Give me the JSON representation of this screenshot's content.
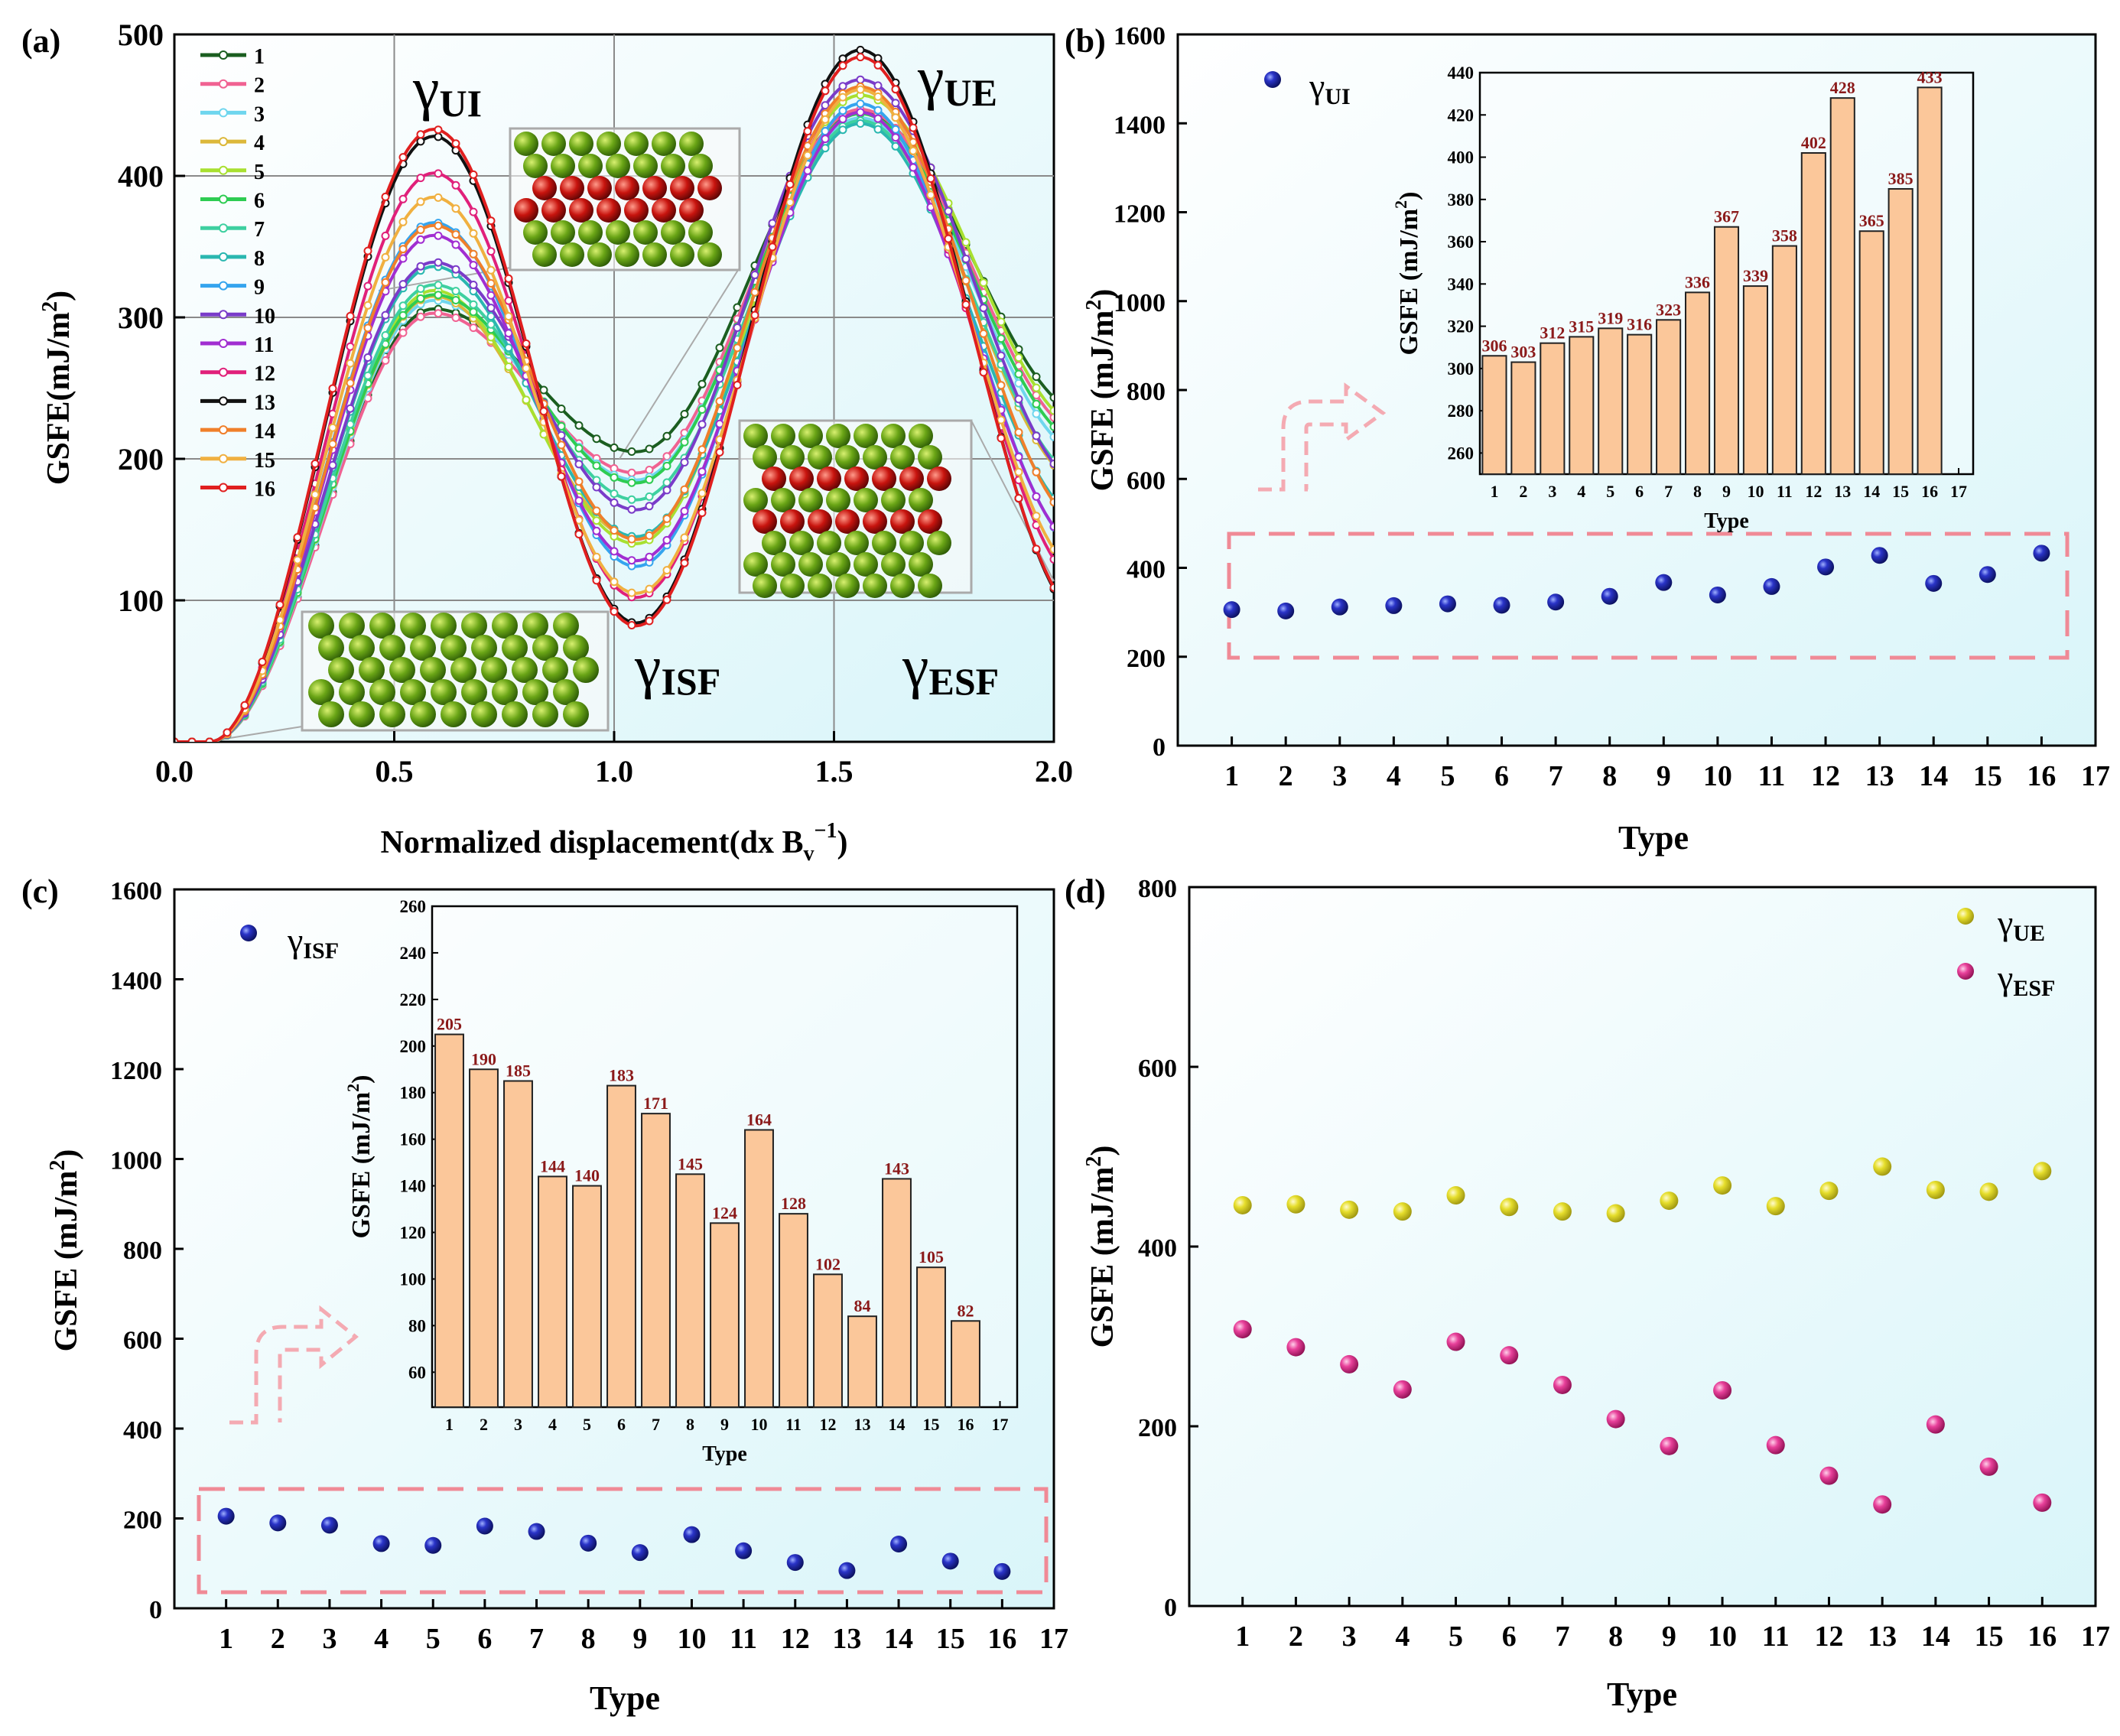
{
  "chart_data": [
    {
      "panel": "(a)",
      "type": "line",
      "xlabel": "Normalized displacement(dx B",
      "xlabel_sub": "v",
      "xlabel_sup": "−1",
      "xlabel_close": ")",
      "ylabel": "GSFE(mJ/m",
      "ylabel_sup": "2",
      "ylabel_close": ")",
      "xlim": [
        0,
        2
      ],
      "ylim": [
        0,
        500
      ],
      "xticks": [
        0.0,
        0.5,
        1.0,
        1.5,
        2.0
      ],
      "xtick_labels": [
        "0.0",
        "0.5",
        "1.0",
        "1.5",
        "2.0"
      ],
      "yticks": [
        100,
        200,
        300,
        400,
        500
      ],
      "annotations": [
        {
          "main": "γ",
          "sub": "UI"
        },
        {
          "main": "γ",
          "sub": "UE"
        },
        {
          "main": "γ",
          "sub": "ISF"
        },
        {
          "main": "γ",
          "sub": "ESF"
        }
      ],
      "legend": [
        "1",
        "2",
        "3",
        "4",
        "5",
        "6",
        "7",
        "8",
        "9",
        "10",
        "11",
        "12",
        "13",
        "14",
        "15",
        "16"
      ],
      "colors": [
        "#1b5e20",
        "#f06292",
        "#6fd6ee",
        "#dcb83a",
        "#a8e030",
        "#2ecc52",
        "#3ed0a0",
        "#2ab7b0",
        "#35a4ee",
        "#7a3cc9",
        "#a12ed1",
        "#e0207a",
        "#111111",
        "#f07f2a",
        "#f0b040",
        "#e01f1f"
      ],
      "series": [
        {
          "name": "1",
          "ui": 306,
          "isf": 205,
          "ue": 446,
          "esf": 308
        },
        {
          "name": "2",
          "ui": 303,
          "isf": 190,
          "ue": 447,
          "esf": 288
        },
        {
          "name": "3",
          "ui": 312,
          "isf": 185,
          "ue": 441,
          "esf": 269
        },
        {
          "name": "4",
          "ui": 315,
          "isf": 144,
          "ue": 439,
          "esf": 241
        },
        {
          "name": "5",
          "ui": 319,
          "isf": 140,
          "ue": 457,
          "esf": 294
        },
        {
          "name": "6",
          "ui": 316,
          "isf": 183,
          "ue": 444,
          "esf": 279
        },
        {
          "name": "7",
          "ui": 323,
          "isf": 171,
          "ue": 439,
          "esf": 246
        },
        {
          "name": "8",
          "ui": 336,
          "isf": 145,
          "ue": 437,
          "esf": 208
        },
        {
          "name": "9",
          "ui": 367,
          "isf": 124,
          "ue": 451,
          "esf": 178
        },
        {
          "name": "10",
          "ui": 339,
          "isf": 164,
          "ue": 468,
          "esf": 240
        },
        {
          "name": "11",
          "ui": 358,
          "isf": 128,
          "ue": 445,
          "esf": 179
        },
        {
          "name": "12",
          "ui": 402,
          "isf": 102,
          "ue": 462,
          "esf": 145
        },
        {
          "name": "13",
          "ui": 428,
          "isf": 84,
          "ue": 489,
          "esf": 113
        },
        {
          "name": "14",
          "ui": 365,
          "isf": 143,
          "ue": 463,
          "esf": 202
        },
        {
          "name": "15",
          "ui": 385,
          "isf": 105,
          "ue": 461,
          "esf": 155
        },
        {
          "name": "16",
          "ui": 433,
          "isf": 82,
          "ue": 484,
          "esf": 115
        }
      ]
    },
    {
      "panel": "(b)",
      "type": "scatter",
      "xlabel": "Type",
      "ylabel": "GSFE (mJ/m",
      "ylabel_sup": "2",
      "ylabel_close": ")",
      "xlim": [
        0,
        17
      ],
      "ylim": [
        0,
        1600
      ],
      "xticks": [
        1,
        2,
        3,
        4,
        5,
        6,
        7,
        8,
        9,
        10,
        11,
        12,
        13,
        14,
        15,
        16,
        17
      ],
      "yticks": [
        0,
        200,
        400,
        600,
        800,
        1000,
        1200,
        1400,
        1600
      ],
      "legend": {
        "main": "γ",
        "sub": "UI"
      },
      "x": [
        1,
        2,
        3,
        4,
        5,
        6,
        7,
        8,
        9,
        10,
        11,
        12,
        13,
        14,
        15,
        16
      ],
      "values": [
        306,
        303,
        312,
        315,
        319,
        316,
        323,
        336,
        367,
        339,
        358,
        402,
        428,
        365,
        385,
        433
      ],
      "inset": {
        "type": "bar",
        "xlabel": "Type",
        "ylabel": "GSFE (mJ/m",
        "ylabel_sup": "2",
        "ylabel_close": ")",
        "ylim": [
          250,
          440
        ],
        "yticks": [
          260,
          280,
          300,
          320,
          340,
          360,
          380,
          400,
          420,
          440
        ],
        "xticks": [
          1,
          2,
          3,
          4,
          5,
          6,
          7,
          8,
          9,
          10,
          11,
          12,
          13,
          14,
          15,
          16,
          17
        ],
        "labels": [
          "306",
          "303",
          "312",
          "315",
          "319",
          "316",
          "323",
          "336",
          "367",
          "339",
          "358",
          "402",
          "428",
          "365",
          "385",
          "433"
        ]
      }
    },
    {
      "panel": "(c)",
      "type": "scatter",
      "xlabel": "Type",
      "ylabel": "GSFE (mJ/m",
      "ylabel_sup": "2",
      "ylabel_close": ")",
      "xlim": [
        0,
        17
      ],
      "ylim": [
        0,
        1600
      ],
      "xticks": [
        1,
        2,
        3,
        4,
        5,
        6,
        7,
        8,
        9,
        10,
        11,
        12,
        13,
        14,
        15,
        16,
        17
      ],
      "yticks": [
        0,
        200,
        400,
        600,
        800,
        1000,
        1200,
        1400,
        1600
      ],
      "legend": {
        "main": "γ",
        "sub": "ISF"
      },
      "x": [
        1,
        2,
        3,
        4,
        5,
        6,
        7,
        8,
        9,
        10,
        11,
        12,
        13,
        14,
        15,
        16
      ],
      "values": [
        205,
        190,
        185,
        144,
        140,
        183,
        171,
        145,
        124,
        164,
        128,
        102,
        84,
        143,
        105,
        82
      ],
      "inset": {
        "type": "bar",
        "xlabel": "Type",
        "ylabel": "GSFE (mJ/m",
        "ylabel_sup": "2",
        "ylabel_close": ")",
        "ylim": [
          45,
          260
        ],
        "yticks": [
          60,
          80,
          100,
          120,
          140,
          160,
          180,
          200,
          220,
          240,
          260
        ],
        "xticks": [
          1,
          2,
          3,
          4,
          5,
          6,
          7,
          8,
          9,
          10,
          11,
          12,
          13,
          14,
          15,
          16,
          17
        ],
        "labels": [
          "205",
          "190",
          "185",
          "144",
          "140",
          "183",
          "171",
          "145",
          "124",
          "164",
          "128",
          "102",
          "84",
          "143",
          "105",
          "82"
        ]
      }
    },
    {
      "panel": "(d)",
      "type": "scatter",
      "xlabel": "Type",
      "ylabel": "GSFE (mJ/m",
      "ylabel_sup": "2",
      "ylabel_close": ")",
      "xlim": [
        0,
        17
      ],
      "ylim": [
        0,
        800
      ],
      "xticks": [
        1,
        2,
        3,
        4,
        5,
        6,
        7,
        8,
        9,
        10,
        11,
        12,
        13,
        14,
        15,
        16,
        17
      ],
      "yticks": [
        0,
        200,
        400,
        600,
        800
      ],
      "x": [
        1,
        2,
        3,
        4,
        5,
        6,
        7,
        8,
        9,
        10,
        11,
        12,
        13,
        14,
        15,
        16
      ],
      "series": [
        {
          "name": "UE",
          "main": "γ",
          "color": "#e8e030",
          "values": [
            446,
            447,
            441,
            439,
            457,
            444,
            439,
            437,
            451,
            468,
            445,
            462,
            489,
            463,
            461,
            484
          ]
        },
        {
          "name": "ESF",
          "main": "γ",
          "color": "#e8409a",
          "values": [
            308,
            288,
            269,
            241,
            294,
            279,
            246,
            208,
            178,
            240,
            179,
            145,
            113,
            202,
            155,
            115
          ]
        }
      ]
    }
  ]
}
